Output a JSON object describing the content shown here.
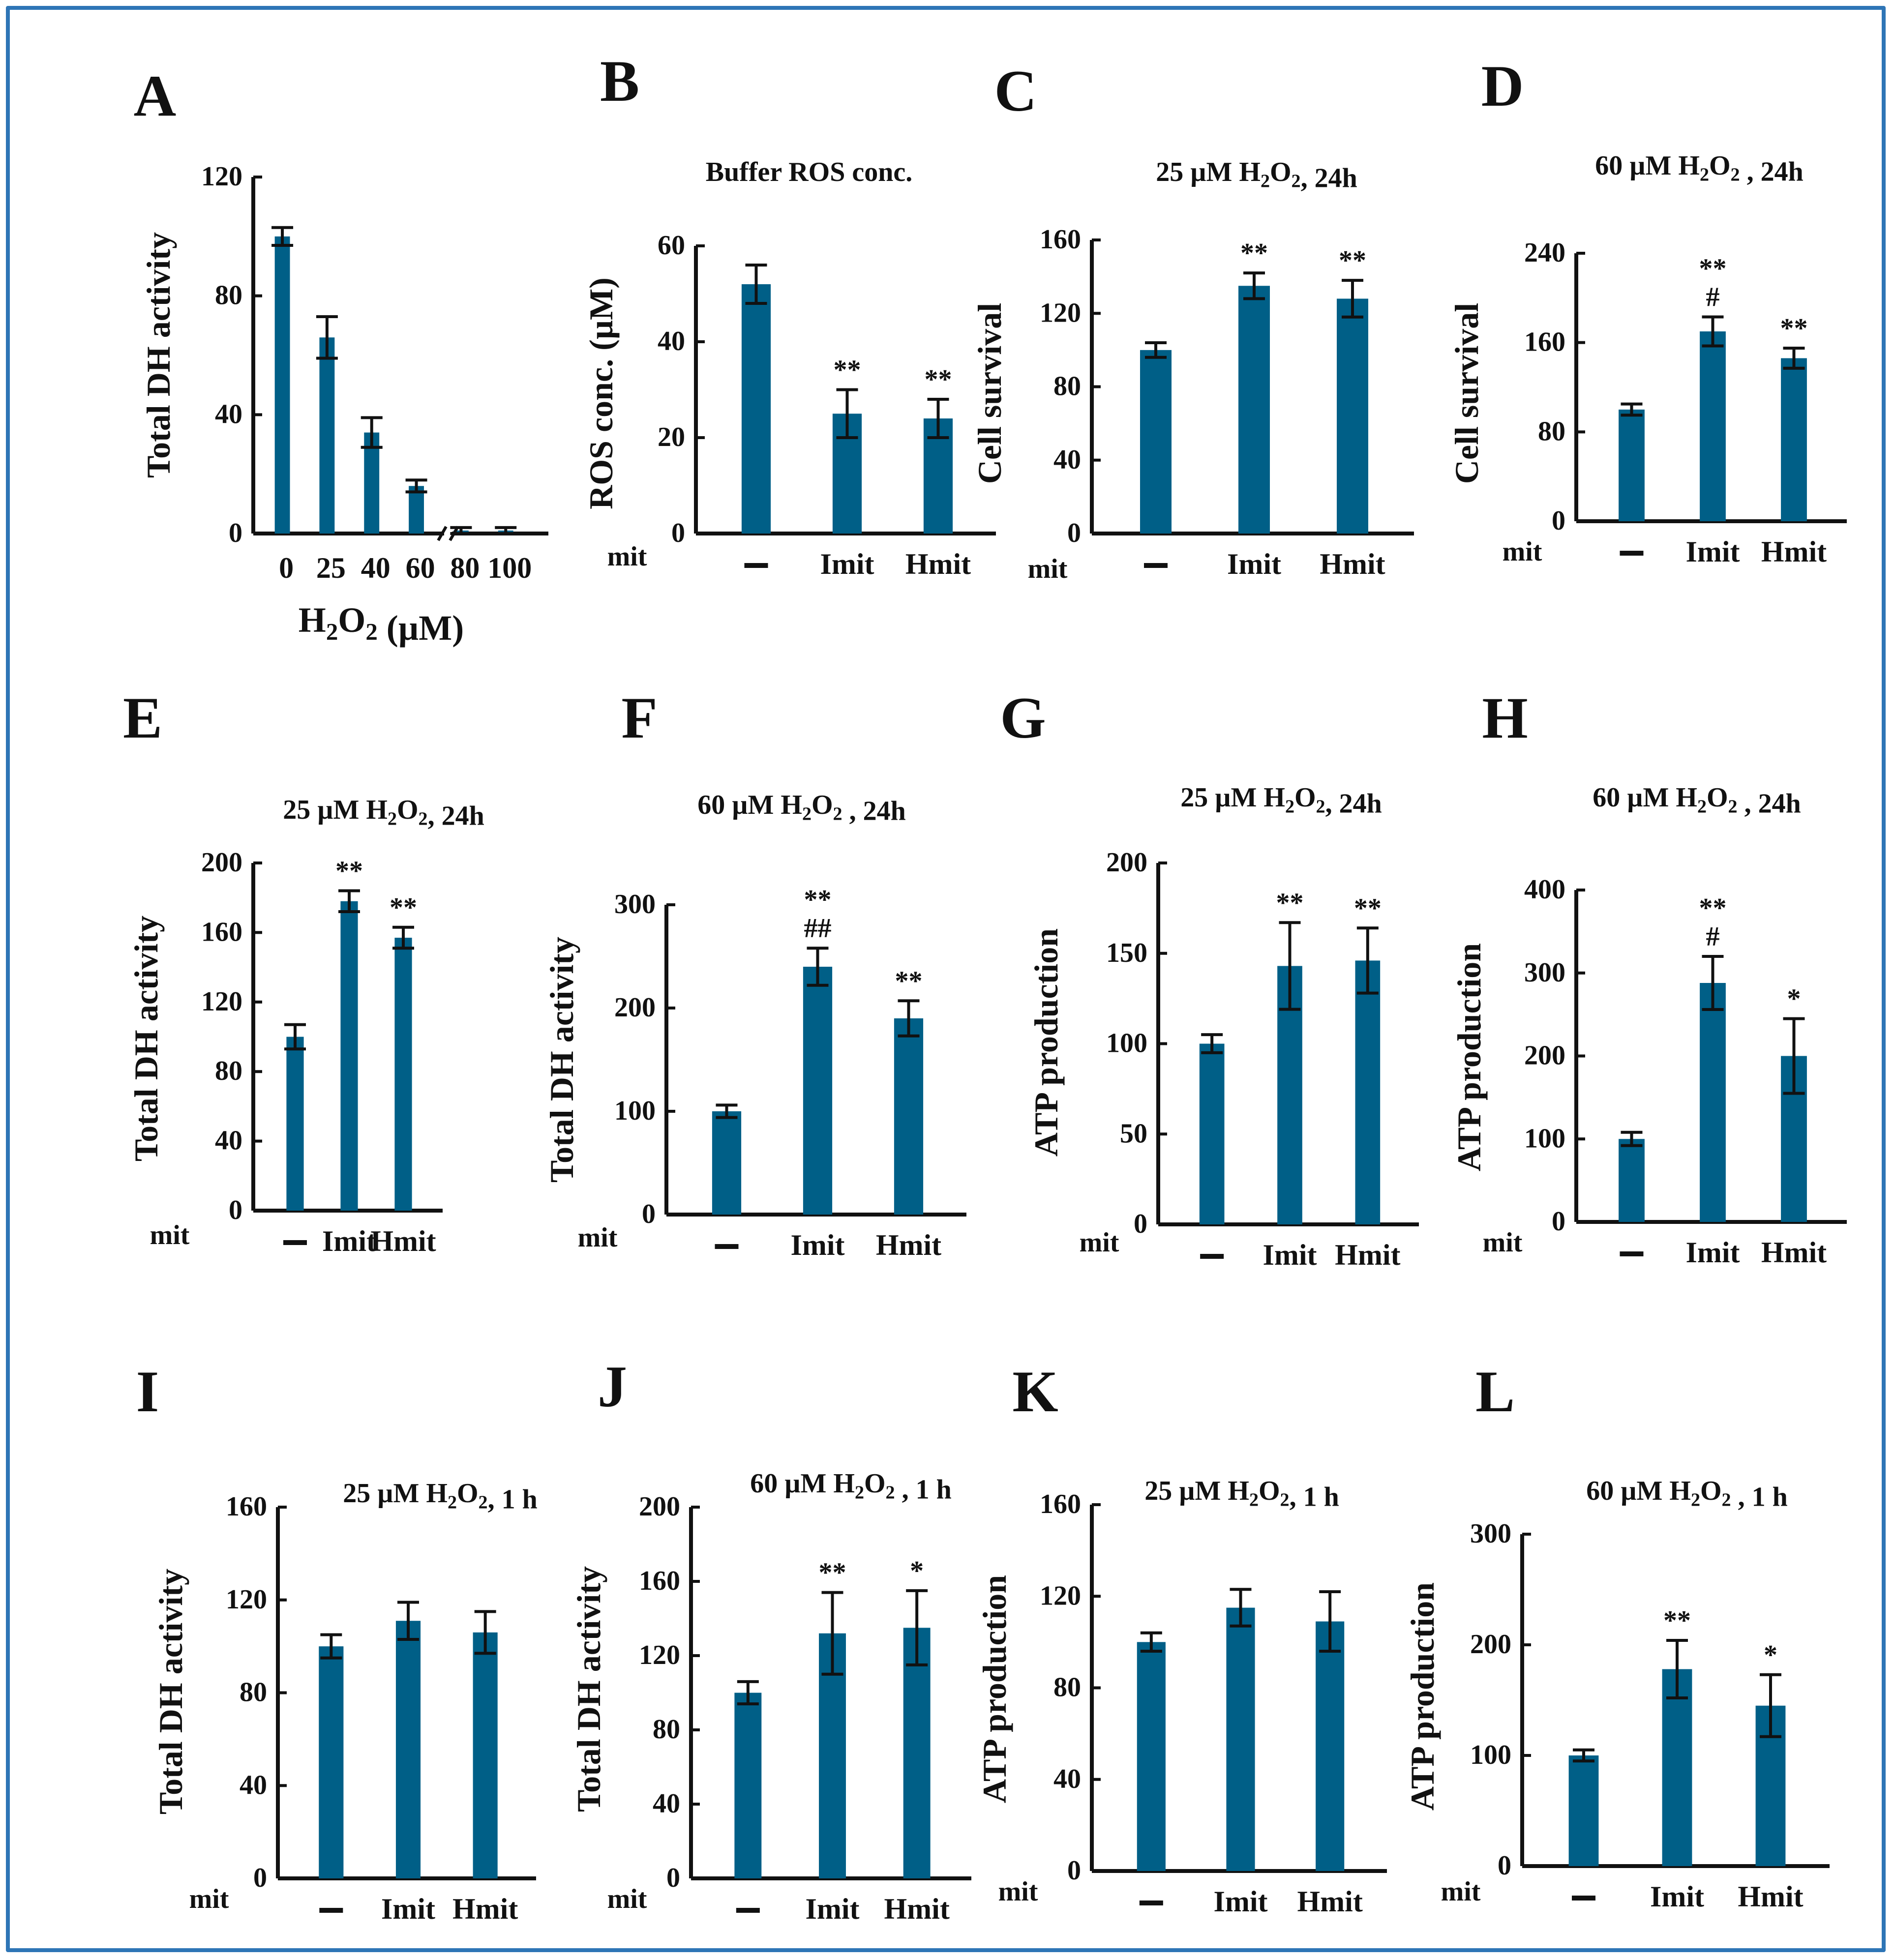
{
  "figure": {
    "bar_color": "#005f87",
    "frame_color": "#2e75b6",
    "treatment_row_label": "mit"
  },
  "chart_data": [
    {
      "panel": "A",
      "type": "bar",
      "title": "",
      "xlabel": "H2O2 (µM)",
      "ylabel": "Total DH activity",
      "ylim": [
        0,
        120
      ],
      "yticks": [
        "0",
        "40",
        "80",
        "120"
      ],
      "categories": [
        "0",
        "25",
        "40",
        "60",
        "80",
        "100"
      ],
      "values": [
        100,
        66,
        34,
        16,
        1,
        1
      ],
      "errors": [
        3,
        7,
        5,
        2,
        1,
        1
      ],
      "annotations": [
        "",
        "",
        "",
        "",
        "",
        ""
      ],
      "axis_break": true
    },
    {
      "panel": "B",
      "type": "bar",
      "title": "Buffer ROS conc.",
      "ylabel": "ROS conc. (µM)",
      "ylim": [
        0,
        60
      ],
      "yticks": [
        "0",
        "20",
        "40",
        "60"
      ],
      "categories": [
        "–",
        "Imit",
        "Hmit"
      ],
      "values": [
        52,
        25,
        24
      ],
      "errors": [
        4,
        5,
        4
      ],
      "annotations": [
        "",
        "**",
        "**"
      ]
    },
    {
      "panel": "C",
      "type": "bar",
      "title": "25 µM H2O2, 24h",
      "ylabel": "Cell survival",
      "ylim": [
        0,
        160
      ],
      "yticks": [
        "0",
        "40",
        "80",
        "120",
        "160"
      ],
      "categories": [
        "–",
        "Imit",
        "Hmit"
      ],
      "values": [
        100,
        135,
        128
      ],
      "errors": [
        4,
        7,
        10
      ],
      "annotations": [
        "",
        "**",
        "**"
      ]
    },
    {
      "panel": "D",
      "type": "bar",
      "title": "60 µM H2O2 , 24h",
      "ylabel": "Cell survival",
      "ylim": [
        0,
        240
      ],
      "yticks": [
        "0",
        "80",
        "160",
        "240"
      ],
      "categories": [
        "–",
        "Imit",
        "Hmit"
      ],
      "values": [
        100,
        170,
        146
      ],
      "errors": [
        5,
        13,
        9
      ],
      "annotations": [
        "",
        "**\n#",
        "**"
      ]
    },
    {
      "panel": "E",
      "type": "bar",
      "title": "25 µM H2O2, 24h",
      "ylabel": "Total DH activity",
      "ylim": [
        0,
        200
      ],
      "yticks": [
        "0",
        "40",
        "80",
        "120",
        "160",
        "200"
      ],
      "categories": [
        "–",
        "Imit",
        "Hmit"
      ],
      "values": [
        100,
        178,
        157
      ],
      "errors": [
        7,
        6,
        6
      ],
      "annotations": [
        "",
        "**",
        "**"
      ]
    },
    {
      "panel": "F",
      "type": "bar",
      "title": "60 µM H2O2 , 24h",
      "ylabel": "Total DH activity",
      "ylim": [
        0,
        300
      ],
      "yticks": [
        "0",
        "100",
        "200",
        "300"
      ],
      "categories": [
        "–",
        "Imit",
        "Hmit"
      ],
      "values": [
        100,
        240,
        190
      ],
      "errors": [
        6,
        18,
        17
      ],
      "annotations": [
        "",
        "**\n##",
        "**"
      ]
    },
    {
      "panel": "G",
      "type": "bar",
      "title": "25 µM H2O2, 24h",
      "ylabel": "ATP production",
      "ylim": [
        0,
        200
      ],
      "yticks": [
        "0",
        "50",
        "100",
        "150",
        "200"
      ],
      "categories": [
        "–",
        "Imit",
        "Hmit"
      ],
      "values": [
        100,
        143,
        146
      ],
      "errors": [
        5,
        24,
        18
      ],
      "annotations": [
        "",
        "**",
        "**"
      ]
    },
    {
      "panel": "H",
      "type": "bar",
      "title": "60 µM H2O2 , 24h",
      "ylabel": "ATP production",
      "ylim": [
        0,
        400
      ],
      "yticks": [
        "0",
        "100",
        "200",
        "300",
        "400"
      ],
      "categories": [
        "–",
        "Imit",
        "Hmit"
      ],
      "values": [
        100,
        288,
        200
      ],
      "errors": [
        8,
        32,
        45
      ],
      "annotations": [
        "",
        "**\n#",
        "*"
      ]
    },
    {
      "panel": "I",
      "type": "bar",
      "title": "25 µM H2O2, 1 h",
      "ylabel": "Total DH activity",
      "ylim": [
        0,
        160
      ],
      "yticks": [
        "0",
        "40",
        "80",
        "120",
        "160"
      ],
      "categories": [
        "–",
        "Imit",
        "Hmit"
      ],
      "values": [
        100,
        111,
        106
      ],
      "errors": [
        5,
        8,
        9
      ],
      "annotations": [
        "",
        "",
        ""
      ]
    },
    {
      "panel": "J",
      "type": "bar",
      "title": "60 µM H2O2 , 1 h",
      "ylabel": "Total DH activity",
      "ylim": [
        0,
        200
      ],
      "yticks": [
        "0",
        "40",
        "80",
        "120",
        "160",
        "200"
      ],
      "categories": [
        "–",
        "Imit",
        "Hmit"
      ],
      "values": [
        100,
        132,
        135
      ],
      "errors": [
        6,
        22,
        20
      ],
      "annotations": [
        "",
        "**",
        "*"
      ]
    },
    {
      "panel": "K",
      "type": "bar",
      "title": "25 µM H2O2, 1 h",
      "ylabel": "ATP production",
      "ylim": [
        0,
        160
      ],
      "yticks": [
        "0",
        "40",
        "80",
        "120",
        "160"
      ],
      "categories": [
        "–",
        "Imit",
        "Hmit"
      ],
      "values": [
        100,
        115,
        109
      ],
      "errors": [
        4,
        8,
        13
      ],
      "annotations": [
        "",
        "",
        ""
      ]
    },
    {
      "panel": "L",
      "type": "bar",
      "title": "60 µM H2O2 , 1 h",
      "ylabel": "ATP production",
      "ylim": [
        0,
        300
      ],
      "yticks": [
        "0",
        "100",
        "200",
        "300"
      ],
      "categories": [
        "–",
        "Imit",
        "Hmit"
      ],
      "values": [
        100,
        178,
        145
      ],
      "errors": [
        5,
        26,
        28
      ],
      "annotations": [
        "",
        "**",
        "*"
      ]
    }
  ]
}
